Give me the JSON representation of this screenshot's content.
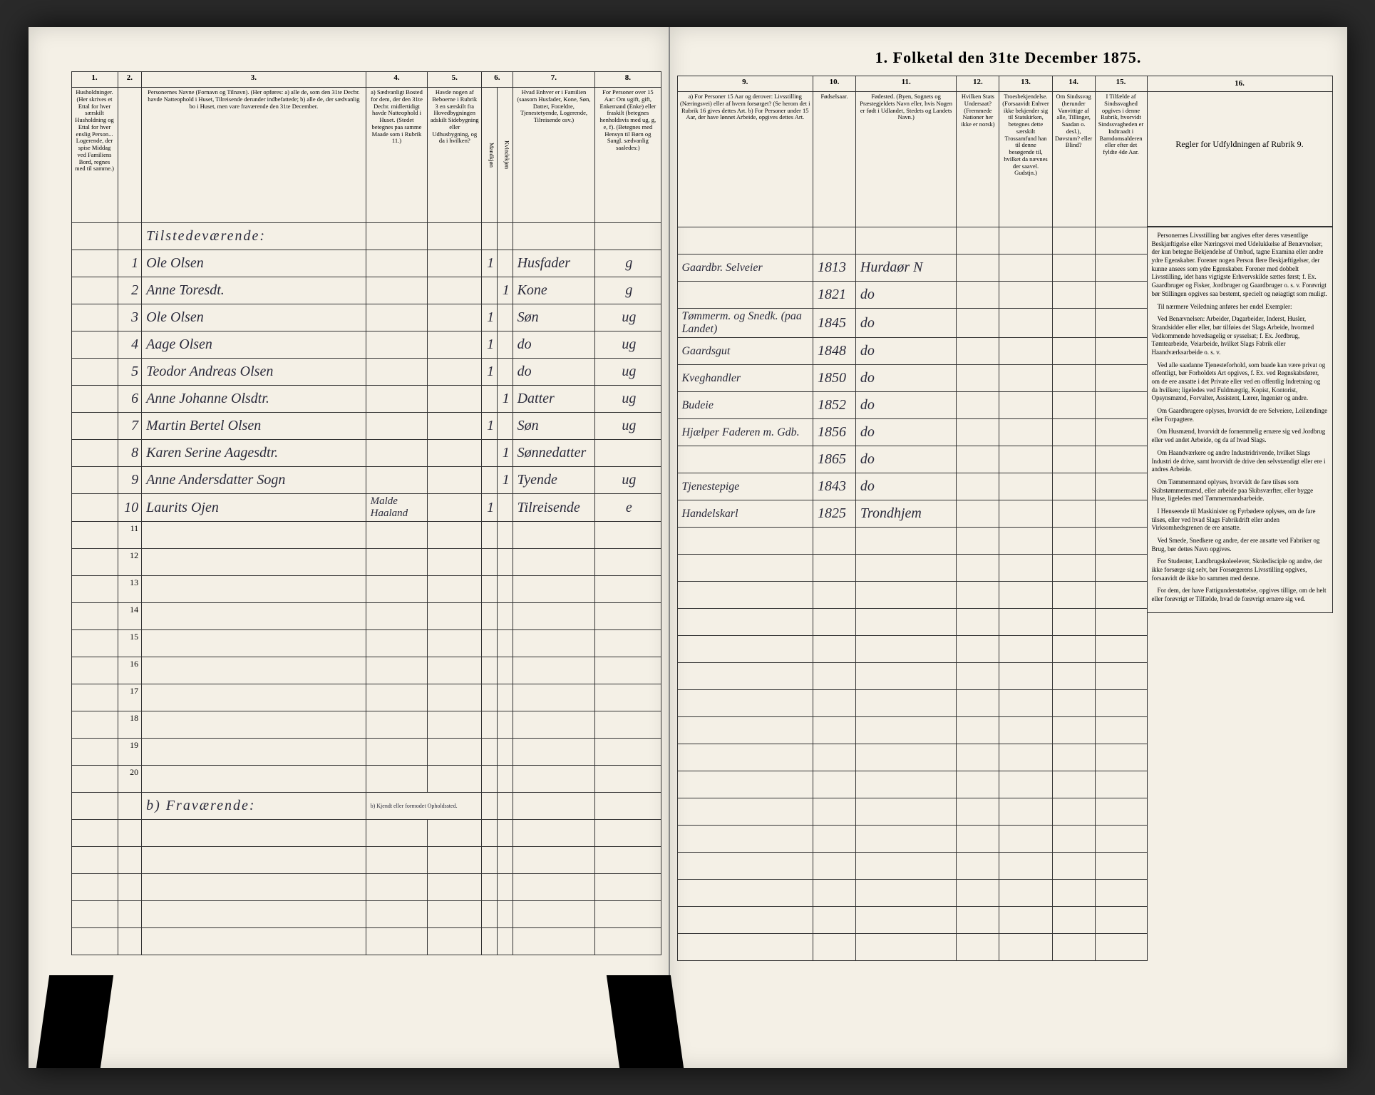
{
  "title": "1. Folketal den 31te December 1875.",
  "columns_left": {
    "1": "1.",
    "2": "2.",
    "3": "3.",
    "4": "4.",
    "5": "5.",
    "6": "6.",
    "7": "7.",
    "8": "8."
  },
  "columns_right": {
    "9": "9.",
    "10": "10.",
    "11": "11.",
    "12": "12.",
    "13": "13.",
    "14": "14.",
    "15": "15.",
    "16": "16."
  },
  "headers_left": {
    "1": "Husholdninger. (Her skrives et Ettal for hver særskilt Husholdning og Ettal for hver enslig Person... Logerende, der spise Middag ved Familiens Bord, regnes med til samme.)",
    "2": "",
    "3": "Personernes Navne (Fornavn og Tilnavn). (Her opføres: a) alle de, som den 31te Decbr. havde Natteophold i Huset, Tilreisende derunder indbefattede; b) alle de, der sædvanlig bo i Huset, men vare fraværende den 31te December.",
    "4": "a) Sædvanligt Bosted for dem, der den 31te Decbr. midlertidigt havde Natteophold i Huset. (Stedet betegnes paa samme Maade som i Rubrik 11.)",
    "5": "Havde nogen af Beboerne i Rubrik 3 en særskilt fra Hovedbygningen adskilt Sidebygning eller Udhusbygning, og da i hvilken?",
    "6": "Kjøn. (Her sættes et Ettal i den vedkommende Rubrik.) Mandkjøn / Kvindekjøn",
    "7": "Hvad Enhver er i Familien (saasom Husfader, Kone, Søn, Datter, Forældre, Tjenestetyende, Logerende, Tilreisende osv.)",
    "8": "For Personer over 15 Aar: Om ugift, gift, Enkemand (Enke) eller fraskilt (betegnes henholdsvis med ug, g, e, f). (Betegnes med Hensyn til Børn og Sangl. sædvanlig saaledes:)"
  },
  "headers_right": {
    "9": "a) For Personer 15 Aar og derover: Livsstilling (Næringsvei) eller af hvem forsørget? (Se herom det i Rubrik 16 gives dettes Art. b) For Personer under 15 Aar, der have lønnet Arbeide, opgives dettes Art.",
    "10": "Fødselsaar.",
    "11": "Fødested. (Byen, Sognets og Præstegjeldets Navn eller, hvis Nogen er født i Udlandet, Stedets og Landets Navn.)",
    "12": "Hvilken Stats Undersaat? (Fremmede Nationer her ikke er norsk)",
    "13": "Troesbekjendelse. (Forsaavidt Enhver ikke bekjender sig til Statskirken, betegnes dette særskilt Trossamfund han til denne besøgende til, hvilket da nævnes der saavel. Gudstjn.)",
    "14": "Om Sindssvag (herunder Vanvittige af alle, Tillinger, Saadan o. desl.), Døvstum? eller Blind?",
    "15": "I Tilfælde af Sindssvaghed opgives i denne Rubrik, hvorvidt Sindssvagheden er Indtraadt i Barndomsalderen eller efter det fyldte 4de Aar.",
    "16": "Regler for Udfyldningen af Rubrik 9."
  },
  "rows": [
    {
      "n": "1",
      "name": "Ole Olsen",
      "col4": "",
      "col5": "",
      "col6m": "1",
      "col6k": "",
      "col7": "Husfader",
      "col8": "g",
      "col9": "Gaardbr. Selveier",
      "col10": "1813",
      "col11": "Hurdaør N"
    },
    {
      "n": "2",
      "name": "Anne Toresdt.",
      "col4": "",
      "col5": "",
      "col6m": "",
      "col6k": "1",
      "col7": "Kone",
      "col8": "g",
      "col9": "",
      "col10": "1821",
      "col11": "do"
    },
    {
      "n": "3",
      "name": "Ole Olsen",
      "col4": "",
      "col5": "",
      "col6m": "1",
      "col6k": "",
      "col7": "Søn",
      "col8": "ug",
      "col9": "Tømmerm. og Snedk. (paa Landet)",
      "col10": "1845",
      "col11": "do"
    },
    {
      "n": "4",
      "name": "Aage Olsen",
      "col4": "",
      "col5": "",
      "col6m": "1",
      "col6k": "",
      "col7": "do",
      "col8": "ug",
      "col9": "Gaardsgut",
      "col10": "1848",
      "col11": "do"
    },
    {
      "n": "5",
      "name": "Teodor Andreas Olsen",
      "col4": "",
      "col5": "",
      "col6m": "1",
      "col6k": "",
      "col7": "do",
      "col8": "ug",
      "col9": "Kveghandler",
      "col10": "1850",
      "col11": "do"
    },
    {
      "n": "6",
      "name": "Anne Johanne Olsdtr.",
      "col4": "",
      "col5": "",
      "col6m": "",
      "col6k": "1",
      "col7": "Datter",
      "col8": "ug",
      "col9": "Budeie",
      "col10": "1852",
      "col11": "do"
    },
    {
      "n": "7",
      "name": "Martin Bertel Olsen",
      "col4": "",
      "col5": "",
      "col6m": "1",
      "col6k": "",
      "col7": "Søn",
      "col8": "ug",
      "col9": "Hjælper Faderen m. Gdb.",
      "col10": "1856",
      "col11": "do"
    },
    {
      "n": "8",
      "name": "Karen Serine Aagesdtr.",
      "col4": "",
      "col5": "",
      "col6m": "",
      "col6k": "1",
      "col7": "Sønnedatter",
      "col8": "",
      "col9": "",
      "col10": "1865",
      "col11": "do"
    },
    {
      "n": "9",
      "name": "Anne Andersdatter Sogn",
      "col4": "",
      "col5": "",
      "col6m": "",
      "col6k": "1",
      "col7": "Tyende",
      "col8": "ug",
      "col9": "Tjenestepige",
      "col10": "1843",
      "col11": "do"
    },
    {
      "n": "10",
      "name": "Laurits Ojen",
      "col4": "Malde Haaland",
      "col5": "",
      "col6m": "1",
      "col6k": "",
      "col7": "Tilreisende",
      "col8": "e",
      "col9": "Handelskarl",
      "col10": "1825",
      "col11": "Trondhjem"
    }
  ],
  "section_a": "Tilstedeværende:",
  "section_b": "b) Fraværende:",
  "section_b_note": "b) Kjendt eller formodet Opholdssted.",
  "rules_text": [
    "Personernes Livsstilling bør angives efter deres væsentlige Beskjæftigelse eller Næringsvei med Udelukkelse af Benævnelser, der kun betegne Bekjendelse af Ombud, tagne Examina eller andre ydre Egenskaber. Forener nogen Person flere Beskjæftigelser, der kunne ansees som ydre Egenskaber. Forener med dobbelt Livsstilling, idet hans vigtigste Erhvervskilde sættes først; f. Ex. Gaardbruger og Fisker, Jordbruger og Gaardbruger o. s. v. Forøvrigt bør Stillingen opgives saa bestemt, specielt og nøiagtigt som muligt.",
    "Til nærmere Veiledning anføres her endel Exempler:",
    "Ved Benævnelsen: Arbeider, Dagarbeider, Inderst, Husler, Strandsidder eller eller, bør tilføies det Slags Arbeide, hvormed Vedkommende hovedsagelig er sysselsat; f. Ex. Jordbrug, Tømtearbeide, Veiarbeide, hvilket Slags Fabrik eller Haandværksarbeide o. s. v.",
    "Ved alle saadanne Tjenesteforhold, som baade kan være privat og offentligt, bør Forholdets Art opgives, f. Ex. ved Regnskabsfører, om de ere ansatte i det Private eller ved en offentlig Indretning og da hvilken; ligeledes ved Fuldmægtig, Kopist, Kontorist, Opsynsmænd, Forvalter, Assistent, Lærer, Ingeniør og andre.",
    "Om Gaardbrugere oplyses, hvorvidt de ere Selveiere, Leilændinge eller Forpagtere.",
    "Om Husmænd, hvorvidt de fornemmelig ernære sig ved Jordbrug eller ved andet Arbeide, og da af hvad Slags.",
    "Om Haandværkere og andre Industridrivende, hvilket Slags Industri de drive, samt hvorvidt de drive den selvstændigt eller ere i andres Arbeide.",
    "Om Tømmermænd oplyses, hvorvidt de fare tilsøs som Skibstømmermænd, eller arbeide paa Skibsværfter, eller bygge Huse, ligeledes med Tømmermandsarbeide.",
    "I Henseende til Maskinister og Fyrbødere oplyses, om de fare tilsøs, eller ved hvad Slags Fabrikdrift eller anden Virksomhedsgrenen de ere ansatte.",
    "Ved Smede, Snedkere og andre, der ere ansatte ved Fabriker og Brug, bør dettes Navn opgives.",
    "For Studenter, Landbrugskoleelever, Skoledisciple og andre, der ikke forsørge sig selv, bør Forsørgerens Livsstilling opgives, forsaavidt de ikke bo sammen med denne.",
    "For dem, der have Fattigunderstøttelse, opgives tillige, om de helt eller forøvrigt er Tilfælde, hvad de forøvrigt ernære sig ved."
  ],
  "colors": {
    "page_bg": "#f4f0e6",
    "border": "#333333",
    "ink": "#2a2a3a",
    "outer_bg": "#2a2a2a"
  }
}
